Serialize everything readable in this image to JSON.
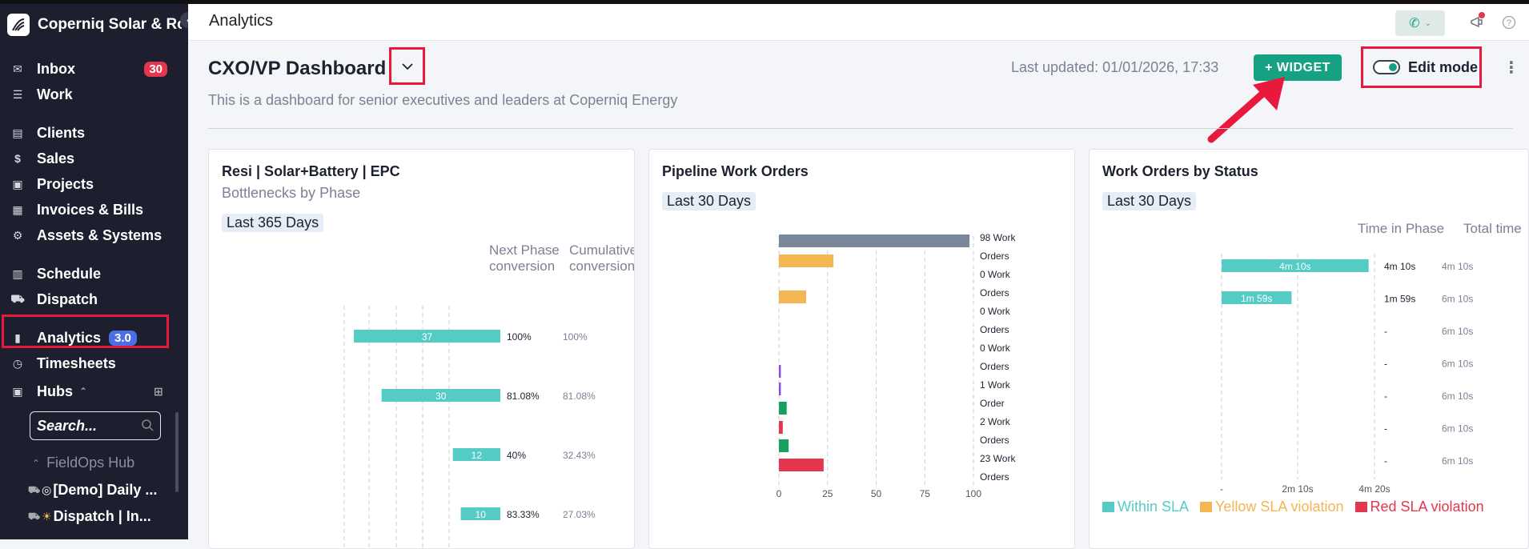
{
  "sidebar": {
    "brand": "Coperniq Solar & Roofing",
    "nav": [
      {
        "label": "Inbox",
        "badge": "30",
        "icon": "inbox-icon",
        "glyph": "✉"
      },
      {
        "label": "Work",
        "icon": "work-list-icon",
        "glyph": "☰"
      },
      {
        "label": "Clients",
        "icon": "clients-icon",
        "glyph": "▤"
      },
      {
        "label": "Sales",
        "icon": "dollar-icon",
        "glyph": "$"
      },
      {
        "label": "Projects",
        "icon": "briefcase-icon",
        "glyph": "▣"
      },
      {
        "label": "Invoices & Bills",
        "icon": "invoice-icon",
        "glyph": "▦"
      },
      {
        "label": "Assets & Systems",
        "icon": "assets-icon",
        "glyph": "⚙"
      },
      {
        "label": "Schedule",
        "icon": "calendar-icon",
        "glyph": "▥"
      },
      {
        "label": "Dispatch",
        "icon": "truck-icon",
        "glyph": "⛟"
      },
      {
        "label": "Analytics",
        "badge": "3.0",
        "icon": "bar-chart-icon",
        "glyph": "▮"
      },
      {
        "label": "Timesheets",
        "icon": "timesheet-icon",
        "glyph": "◷"
      }
    ],
    "hubs_label": "Hubs",
    "search_placeholder": "Search...",
    "hub_group": "FieldOps Hub",
    "hub_items": [
      "[Demo] Daily ...",
      "Dispatch | In..."
    ]
  },
  "header": {
    "title": "Analytics"
  },
  "dashboard": {
    "title": "CXO/VP Dashboard",
    "description": "This is a dashboard for senior executives and leaders at Coperniq Energy",
    "last_updated": "Last updated: 01/01/2026, 17:33",
    "widget_button": "+ WIDGET",
    "edit_mode": "Edit mode",
    "colors": {
      "accent": "#17a183",
      "highlight": "#e8193c"
    }
  },
  "cards": {
    "bottlenecks": {
      "title": "Resi | Solar+Battery | EPC",
      "subtitle": "Bottlenecks by Phase",
      "period": "Last 365 Days",
      "col1": "Next Phase conversion",
      "col2": "Cumulative conversion"
    },
    "pipeline": {
      "title": "Pipeline Work Orders",
      "period": "Last 30 Days"
    },
    "status": {
      "title": "Work Orders by Status",
      "period": "Last 30 Days",
      "col1": "Time in Phase",
      "col2": "Total time",
      "legend": [
        "Within SLA",
        "Yellow SLA violation",
        "Red SLA violation"
      ]
    }
  },
  "chart_data": [
    {
      "type": "bar",
      "title": "Resi | Solar+Battery | EPC",
      "values": [
        37,
        30,
        12,
        10
      ],
      "next_phase_conversion": [
        "100%",
        "81.08%",
        "40%",
        "83.33%"
      ],
      "cumulative_conversion": [
        "100%",
        "81.08%",
        "32.43%",
        "27.03%"
      ],
      "color": "#55cbc6"
    },
    {
      "type": "bar",
      "title": "Pipeline Work Orders",
      "orientation": "horizontal",
      "xlim": [
        0,
        100
      ],
      "xticks": [
        "0",
        "25",
        "50",
        "75",
        "100"
      ],
      "row_labels": [
        "98 Work",
        "Orders",
        "0 Work",
        "Orders",
        "0 Work",
        "Orders",
        "0 Work",
        "Orders",
        "1 Work",
        "Order",
        "2 Work",
        "Orders",
        "23 Work",
        "Orders"
      ],
      "bars": [
        {
          "value": 98,
          "color": "#7a8799"
        },
        {
          "value": 28,
          "color": "#f4b553"
        },
        {
          "value": 14,
          "color": "#f4b553"
        },
        {
          "value": 1,
          "color": "#8a4fd8"
        },
        {
          "value": 1,
          "color": "#8a4fd8"
        },
        {
          "value": 4,
          "color": "#17a060"
        },
        {
          "value": 2,
          "color": "#e5364f"
        },
        {
          "value": 5,
          "color": "#17a060"
        },
        {
          "value": 23,
          "color": "#e5364f"
        }
      ]
    },
    {
      "type": "bar",
      "title": "Work Orders by Status",
      "orientation": "horizontal",
      "xticks": [
        "-",
        "2m 10s",
        "4m 20s"
      ],
      "bars": [
        {
          "value_sec": 250,
          "label": "4m 10s"
        },
        {
          "value_sec": 119,
          "label": "1m 59s"
        }
      ],
      "time_in_phase": [
        "4m 10s",
        "1m 59s",
        "-",
        "-",
        "-",
        "-",
        "-"
      ],
      "total_time": [
        "4m 10s",
        "6m 10s",
        "6m 10s",
        "6m 10s",
        "6m 10s",
        "6m 10s",
        "6m 10s"
      ],
      "legend_colors": [
        "#55cbc6",
        "#f4b553",
        "#e5364f"
      ]
    }
  ]
}
